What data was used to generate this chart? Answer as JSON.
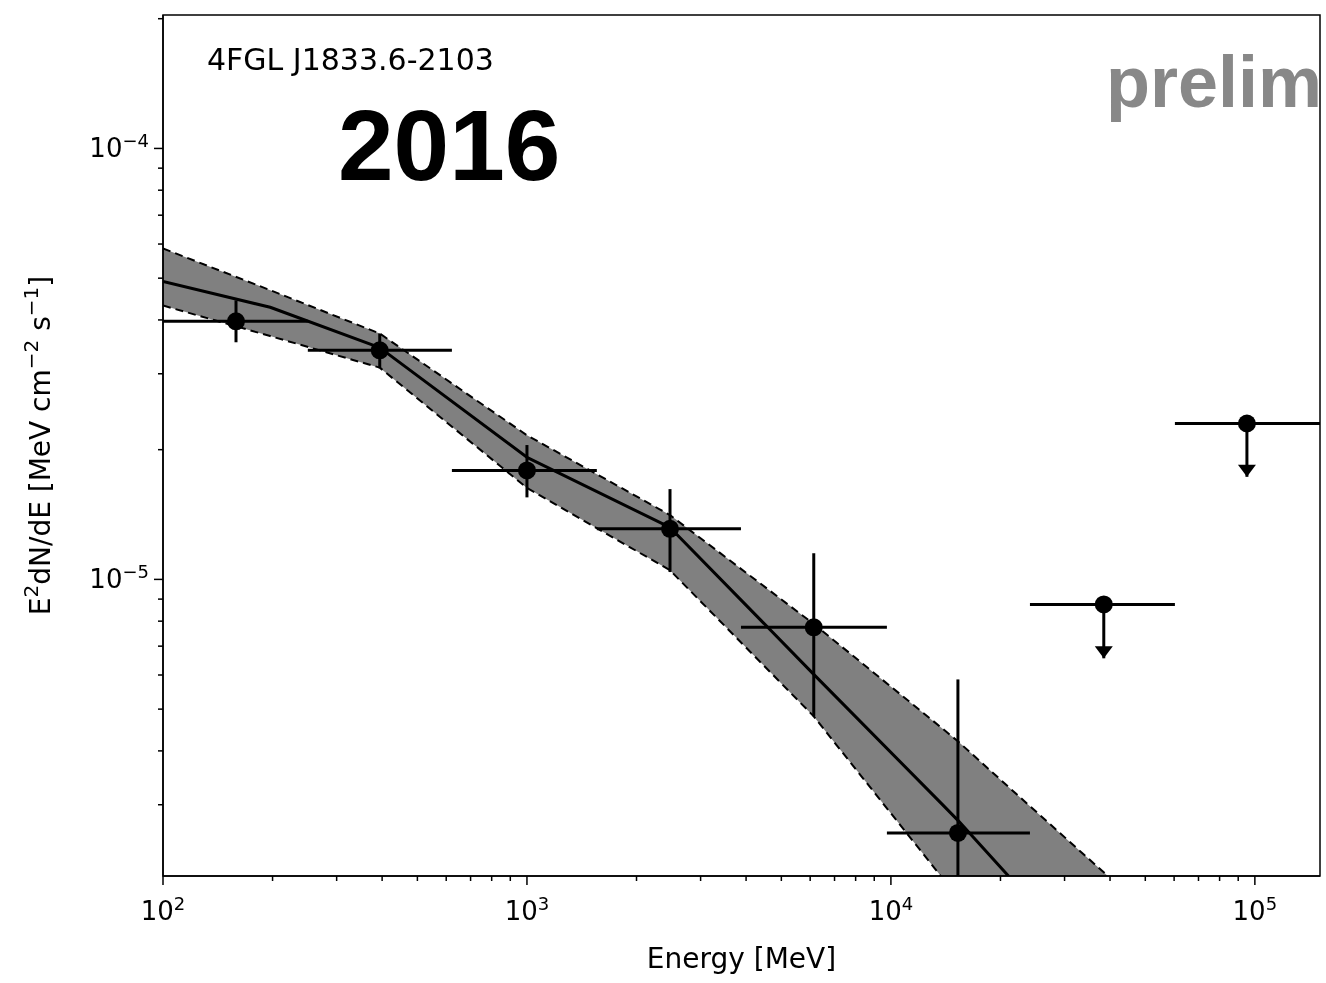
{
  "chart_data": {
    "type": "scatter",
    "xlabel": "Energy [MeV]",
    "ylabel": "E$^{2}$dN/dE [MeV cm$^{−2}$ s$^{−1}$]",
    "annotations": [
      "4FGL J1833.6-2103",
      "2016",
      "prelim"
    ],
    "log": "xy",
    "xlim": [
      100,
      151000
    ],
    "ylim": [
      2.05e-06,
      0.000204
    ],
    "xticks": [
      {
        "value": 100,
        "label": "10$^{2}$"
      },
      {
        "value": 200,
        "label": null
      },
      {
        "value": 300,
        "label": null
      },
      {
        "value": 400,
        "label": null
      },
      {
        "value": 500,
        "label": null
      },
      {
        "value": 600,
        "label": null
      },
      {
        "value": 700,
        "label": null
      },
      {
        "value": 800,
        "label": null
      },
      {
        "value": 900,
        "label": null
      },
      {
        "value": 1000,
        "label": "10$^{3}$"
      },
      {
        "value": 2000,
        "label": null
      },
      {
        "value": 3000,
        "label": null
      },
      {
        "value": 4000,
        "label": null
      },
      {
        "value": 5000,
        "label": null
      },
      {
        "value": 6000,
        "label": null
      },
      {
        "value": 7000,
        "label": null
      },
      {
        "value": 8000,
        "label": null
      },
      {
        "value": 9000,
        "label": null
      },
      {
        "value": 10000,
        "label": "10$^{4}$"
      },
      {
        "value": 20000,
        "label": null
      },
      {
        "value": 30000,
        "label": null
      },
      {
        "value": 40000,
        "label": null
      },
      {
        "value": 50000,
        "label": null
      },
      {
        "value": 60000,
        "label": null
      },
      {
        "value": 70000,
        "label": null
      },
      {
        "value": 80000,
        "label": null
      },
      {
        "value": 90000,
        "label": null
      },
      {
        "value": 100000,
        "label": "10$^{5}$"
      }
    ],
    "yticks": [
      {
        "value": 3e-06,
        "label": null
      },
      {
        "value": 4e-06,
        "label": null
      },
      {
        "value": 5e-06,
        "label": null
      },
      {
        "value": 6e-06,
        "label": null
      },
      {
        "value": 7e-06,
        "label": null
      },
      {
        "value": 8e-06,
        "label": null
      },
      {
        "value": 9e-06,
        "label": null
      },
      {
        "value": 1e-05,
        "label": "10$^{−5}$"
      },
      {
        "value": 2e-05,
        "label": null
      },
      {
        "value": 3e-05,
        "label": null
      },
      {
        "value": 4e-05,
        "label": null
      },
      {
        "value": 5e-05,
        "label": null
      },
      {
        "value": 6e-05,
        "label": null
      },
      {
        "value": 7e-05,
        "label": null
      },
      {
        "value": 8e-05,
        "label": null
      },
      {
        "value": 9e-05,
        "label": null
      },
      {
        "value": 0.0001,
        "label": "10$^{−4}$"
      },
      {
        "value": 0.0002,
        "label": null
      }
    ],
    "grid": false,
    "legend": false,
    "marker": "circle",
    "series": [
      {
        "color": "#000000",
        "x": [
          158.7,
          394,
          1000,
          2472,
          6138,
          15280
        ],
        "values": [
          3.97e-05,
          3.4e-05,
          1.79e-05,
          1.31e-05,
          7.74e-06,
          2.58e-06
        ],
        "errors": [
          [
            3.55e-05,
            4.44e-05
          ],
          [
            3.09e-05,
            3.72e-05
          ],
          [
            1.55e-05,
            2.05e-05
          ],
          [
            1.04e-05,
            1.62e-05
          ],
          [
            4.81e-06,
            1.15e-05
          ],
          [
            2.05e-06,
            5.86e-06
          ]
        ],
        "xerrors": [
          [
            100,
            250
          ],
          [
            250,
            622
          ],
          [
            622,
            1556
          ],
          [
            1556,
            3873
          ],
          [
            3873,
            9750
          ],
          [
            9750,
            24100
          ]
        ]
      },
      {
        "color": "#000000",
        "x": [
          38450,
          95100
        ],
        "values": [
          8.75e-06,
          2.3e-05
        ],
        "errors": [
          [
            6.56e-06,
            8.75e-06
          ],
          [
            1.73e-05,
            2.3e-05
          ]
        ],
        "xerrors": [
          [
            24100,
            60300
          ],
          [
            60300,
            151000
          ]
        ]
      },
      {
        "type": "line",
        "color": "#000000",
        "line_style": "solid",
        "marker": "none",
        "x": [
          100,
          197,
          394,
          1000,
          2472,
          6138,
          13710,
          15280,
          21040,
          39450
        ],
        "values": [
          4.91e-05,
          4.28e-05,
          3.45e-05,
          1.92e-05,
          1.32e-05,
          6.02e-06,
          3.03e-06,
          2.76e-06,
          2.05e-06,
          null
        ],
        "lower": [
          4.32e-05,
          3.67e-05,
          3.1e-05,
          1.63e-05,
          1.05e-05,
          4.81e-06,
          2.05e-06,
          2.05e-06,
          2.05e-06,
          2.05e-06
        ],
        "upper": [
          5.86e-05,
          4.69e-05,
          3.72e-05,
          2.16e-05,
          1.41e-05,
          7.88e-06,
          4.54e-06,
          4.21e-06,
          3.3e-06,
          2.05e-06
        ]
      },
      {
        "type": "line",
        "color": "#000000",
        "line_style": "dashed",
        "marker": "none",
        "x": [
          100,
          197,
          394,
          1000,
          2472,
          6138,
          13710
        ],
        "values": [
          4.32e-05,
          3.67e-05,
          3.1e-05,
          1.63e-05,
          1.05e-05,
          4.81e-06,
          2.05e-06
        ]
      },
      {
        "type": "line",
        "color": "#000000",
        "line_style": "dashed",
        "marker": "none",
        "x": [
          100,
          197,
          394,
          1000,
          2472,
          6138,
          13710,
          15280,
          21040,
          39450
        ],
        "values": [
          5.86e-05,
          4.69e-05,
          3.72e-05,
          2.16e-05,
          1.41e-05,
          7.88e-06,
          4.54e-06,
          4.21e-06,
          3.3e-06,
          2.05e-06
        ]
      }
    ]
  }
}
